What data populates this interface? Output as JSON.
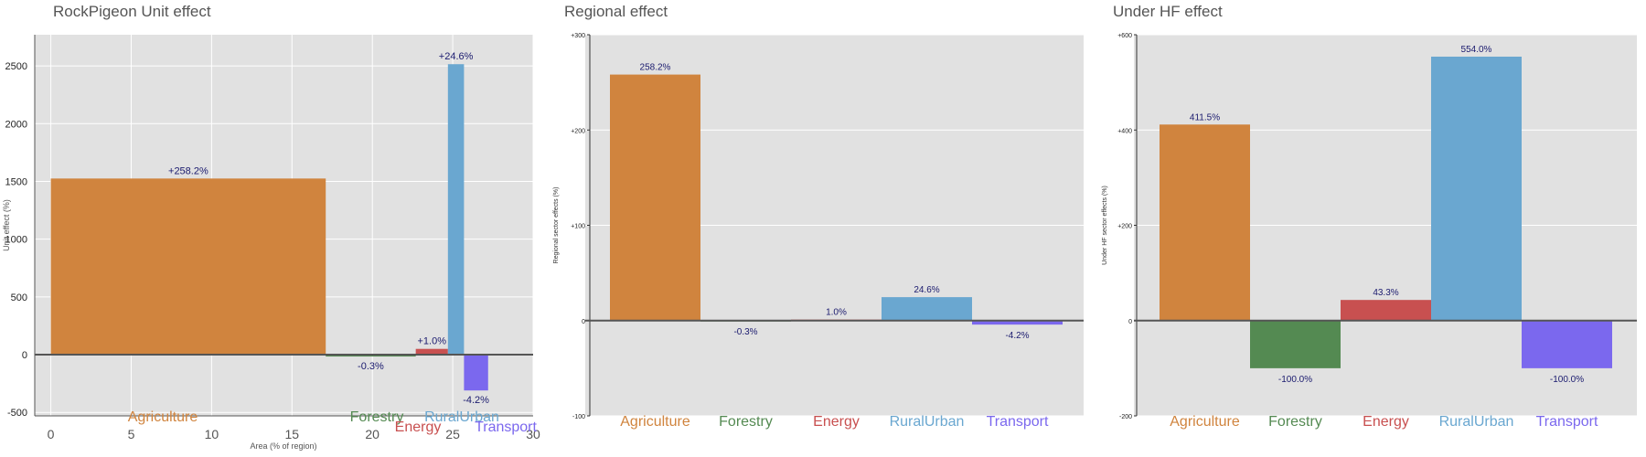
{
  "chart_data": [
    {
      "id": "unit",
      "type": "bar",
      "title": "RockPigeon Unit effect",
      "ylabel": "Unit effect (%)",
      "xlabel": "Area (% of region)",
      "xlim": [
        -1,
        30
      ],
      "ylim": [
        -530,
        2770
      ],
      "xticks": [
        0,
        5,
        10,
        15,
        20,
        25,
        30
      ],
      "yticks": [
        -500,
        0,
        500,
        1000,
        1500,
        2000,
        2500
      ],
      "grid": true,
      "bars": [
        {
          "category": "Agriculture",
          "x0": 0,
          "x1": 17.1,
          "value": 1525,
          "label": "+258.2%",
          "color": "#d0843e",
          "label_color": "#d0843e"
        },
        {
          "category": "Forestry",
          "x0": 17.1,
          "x1": 22.7,
          "value": -15,
          "label": "-0.3%",
          "color": "#548a52",
          "label_color": "#548a52"
        },
        {
          "category": "Energy",
          "x0": 22.7,
          "x1": 24.7,
          "value": 50,
          "label": "+1.0%",
          "color": "#c85050",
          "label_color": "#c85050"
        },
        {
          "category": "RuralUrban",
          "x0": 24.7,
          "x1": 25.7,
          "value": 2515,
          "label": "+24.6%",
          "color": "#6aa7d0",
          "label_color": "#6aa7d0"
        },
        {
          "category": "Transport",
          "x0": 25.7,
          "x1": 27.2,
          "value": -310,
          "label": "-4.2%",
          "color": "#7b68ee",
          "label_color": "#7b68ee"
        }
      ]
    },
    {
      "id": "regional",
      "type": "bar",
      "title": "Regional effect",
      "ylabel": "Regional sector effects (%)",
      "ylim": [
        -100,
        300
      ],
      "yticks": [
        -100,
        0,
        100,
        200,
        300
      ],
      "ytick_labels": [
        "-100",
        "0",
        "+100",
        "+200",
        "+300"
      ],
      "grid": true,
      "bars": [
        {
          "category": "Agriculture",
          "value": 258.2,
          "label": "258.2%",
          "color": "#d0843e",
          "label_color": "#d0843e"
        },
        {
          "category": "Forestry",
          "value": -0.3,
          "label": "-0.3%",
          "color": "#548a52",
          "label_color": "#548a52"
        },
        {
          "category": "Energy",
          "value": 1.0,
          "label": "1.0%",
          "color": "#c85050",
          "label_color": "#c85050"
        },
        {
          "category": "RuralUrban",
          "value": 24.6,
          "label": "24.6%",
          "color": "#6aa7d0",
          "label_color": "#6aa7d0"
        },
        {
          "category": "Transport",
          "value": -4.2,
          "label": "-4.2%",
          "color": "#7b68ee",
          "label_color": "#7b68ee"
        }
      ]
    },
    {
      "id": "underhf",
      "type": "bar",
      "title": "Under HF effect",
      "ylabel": "Under HF sector effects (%)",
      "ylim": [
        -200,
        600
      ],
      "yticks": [
        -200,
        0,
        200,
        400,
        600
      ],
      "ytick_labels": [
        "-200",
        "0",
        "+200",
        "+400",
        "+600"
      ],
      "grid": true,
      "bars": [
        {
          "category": "Agriculture",
          "value": 411.5,
          "label": "411.5%",
          "color": "#d0843e",
          "label_color": "#d0843e"
        },
        {
          "category": "Forestry",
          "value": -100.0,
          "label": "-100.0%",
          "color": "#548a52",
          "label_color": "#548a52"
        },
        {
          "category": "Energy",
          "value": 43.3,
          "label": "43.3%",
          "color": "#c85050",
          "label_color": "#c85050"
        },
        {
          "category": "RuralUrban",
          "value": 554.0,
          "label": "554.0%",
          "color": "#6aa7d0",
          "label_color": "#6aa7d0"
        },
        {
          "category": "Transport",
          "value": -100.0,
          "label": "-100.0%",
          "color": "#7b68ee",
          "label_color": "#7b68ee"
        }
      ]
    }
  ],
  "colors": {
    "plot_bg": "#e1e1e1",
    "grid": "#ffffff",
    "value_label": "#1a1a6e",
    "axis_text": "#555555"
  }
}
